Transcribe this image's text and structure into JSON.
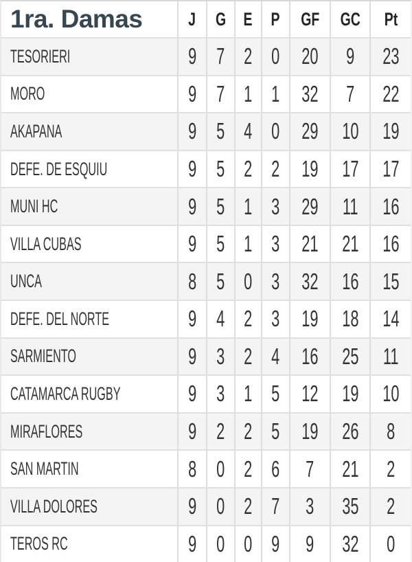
{
  "chart_data": {
    "type": "table",
    "title": "1ra. Damas",
    "column_headers": [
      "J",
      "G",
      "E",
      "P",
      "GF",
      "GC",
      "Pt"
    ],
    "rows": [
      {
        "team": "TESORIERI",
        "values": [
          9,
          7,
          2,
          0,
          20,
          9,
          23
        ]
      },
      {
        "team": "MORO",
        "values": [
          9,
          7,
          1,
          1,
          32,
          7,
          22
        ]
      },
      {
        "team": "AKAPANA",
        "values": [
          9,
          5,
          4,
          0,
          29,
          10,
          19
        ]
      },
      {
        "team": "DEFE. DE ESQUIU",
        "values": [
          9,
          5,
          2,
          2,
          19,
          17,
          17
        ]
      },
      {
        "team": "MUNI HC",
        "values": [
          9,
          5,
          1,
          3,
          29,
          11,
          16
        ]
      },
      {
        "team": "VILLA CUBAS",
        "values": [
          9,
          5,
          1,
          3,
          21,
          21,
          16
        ]
      },
      {
        "team": "UNCA",
        "values": [
          8,
          5,
          0,
          3,
          32,
          16,
          15
        ]
      },
      {
        "team": "DEFE. DEL NORTE",
        "values": [
          9,
          4,
          2,
          3,
          19,
          18,
          14
        ]
      },
      {
        "team": "SARMIENTO",
        "values": [
          9,
          3,
          2,
          4,
          16,
          25,
          11
        ]
      },
      {
        "team": "CATAMARCA RUGBY",
        "values": [
          9,
          3,
          1,
          5,
          12,
          19,
          10
        ]
      },
      {
        "team": "MIRAFLORES",
        "values": [
          9,
          2,
          2,
          5,
          19,
          26,
          8
        ]
      },
      {
        "team": "SAN MARTIN",
        "values": [
          8,
          0,
          2,
          6,
          7,
          21,
          2
        ]
      },
      {
        "team": "VILLA DOLORES",
        "values": [
          9,
          0,
          2,
          7,
          3,
          35,
          2
        ]
      },
      {
        "team": "TEROS RC",
        "values": [
          9,
          0,
          0,
          9,
          9,
          32,
          0
        ]
      }
    ]
  },
  "colors": {
    "title_text": "#37474f",
    "body_text": "#333333",
    "alt_row_bg": "#f4f4f4",
    "grid_line": "#e0e0e0",
    "column_divider": "#dedede"
  }
}
